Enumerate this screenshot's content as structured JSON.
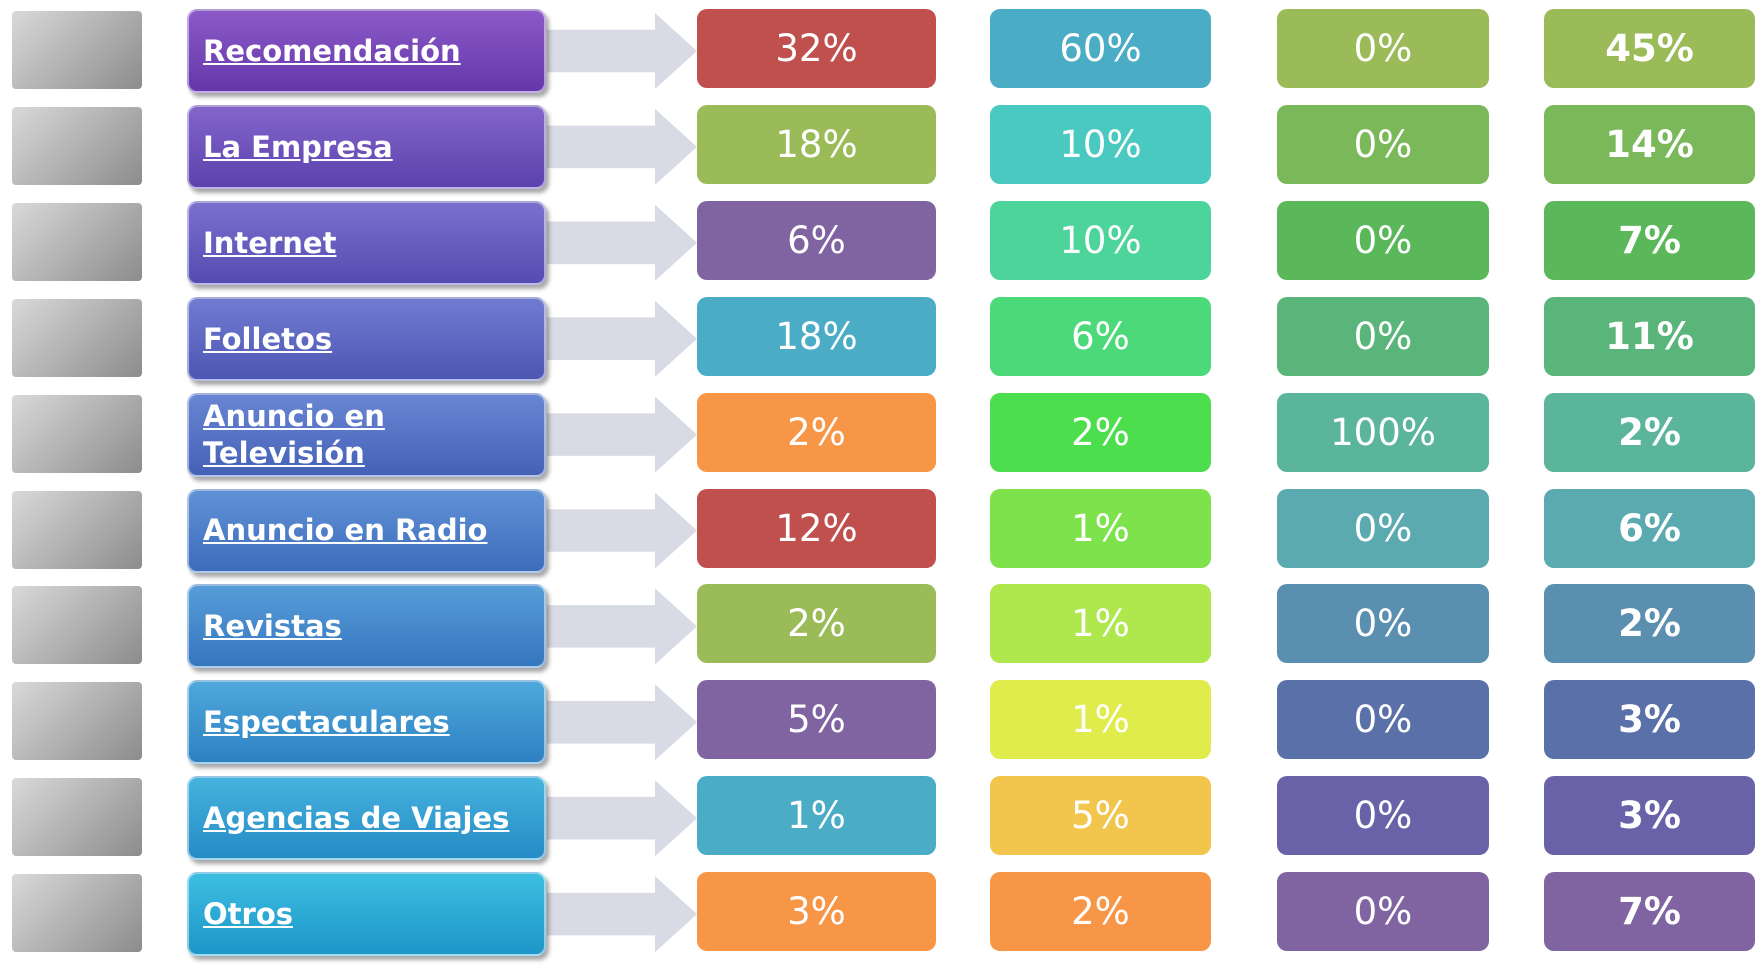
{
  "table": {
    "rows": [
      [
        "Recomendación",
        "32%",
        "60%",
        "0%",
        "45%"
      ],
      [
        "La Empresa",
        "18%",
        "10%",
        "0%",
        "14%"
      ],
      [
        "Internet",
        "6%",
        "10%",
        "0%",
        "7%"
      ],
      [
        "Folletos",
        "18%",
        "6%",
        "0%",
        "11%"
      ],
      [
        "Anuncio en Televisión",
        "2%",
        "2%",
        "100%",
        "2%"
      ],
      [
        "Anuncio en Radio",
        "12%",
        "1%",
        "0%",
        "6%"
      ],
      [
        "Revistas",
        "2%",
        "1%",
        "0%",
        "2%"
      ],
      [
        "Espectaculares",
        "5%",
        "1%",
        "0%",
        "3%"
      ],
      [
        "Agencias de Viajes",
        "1%",
        "5%",
        "0%",
        "3%"
      ],
      [
        "Otros",
        "3%",
        "2%",
        "0%",
        "7%"
      ]
    ]
  }
}
